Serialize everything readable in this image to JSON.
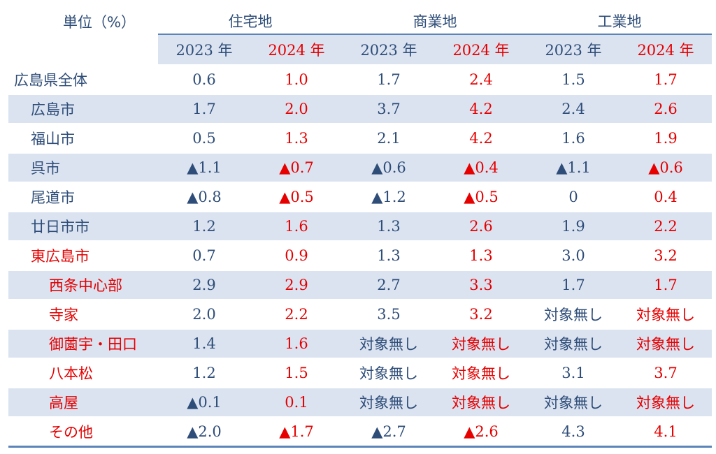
{
  "header": {
    "unit_label": "単位（%）",
    "groups": [
      "住宅地",
      "商業地",
      "工業地"
    ],
    "years": [
      "2023 年",
      "2024 年",
      "2023 年",
      "2024 年",
      "2023 年",
      "2024 年"
    ]
  },
  "colors": {
    "text_blue": "#2e4d78",
    "red": "#e60000",
    "shade": "#dbe3f1",
    "rule": "#5b84b8"
  },
  "rows": [
    {
      "name": "広島県全体",
      "values": [
        "0.6",
        "1.0",
        "1.7",
        "2.4",
        "1.5",
        "1.7"
      ]
    },
    {
      "name": "広島市",
      "values": [
        "1.7",
        "2.0",
        "3.7",
        "4.2",
        "2.4",
        "2.6"
      ]
    },
    {
      "name": "福山市",
      "values": [
        "0.5",
        "1.3",
        "2.1",
        "4.2",
        "1.6",
        "1.9"
      ]
    },
    {
      "name": "呉市",
      "values": [
        "▲1.1",
        "▲0.7",
        "▲0.6",
        "▲0.4",
        "▲1.1",
        "▲0.6"
      ]
    },
    {
      "name": "尾道市",
      "values": [
        "▲0.8",
        "▲0.5",
        "▲1.2",
        "▲0.5",
        "0",
        "0.4"
      ]
    },
    {
      "name": "廿日市市",
      "values": [
        "1.2",
        "1.6",
        "1.3",
        "2.6",
        "1.9",
        "2.2"
      ]
    },
    {
      "name": "東広島市",
      "values": [
        "0.7",
        "0.9",
        "1.3",
        "1.3",
        "3.0",
        "3.2"
      ]
    },
    {
      "name": "西条中心部",
      "values": [
        "2.9",
        "2.9",
        "2.7",
        "3.3",
        "1.7",
        "1.7"
      ]
    },
    {
      "name": "寺家",
      "values": [
        "2.0",
        "2.2",
        "3.5",
        "3.2",
        "対象無し",
        "対象無し"
      ]
    },
    {
      "name": "御薗宇・田口",
      "values": [
        "1.4",
        "1.6",
        "対象無し",
        "対象無し",
        "対象無し",
        "対象無し"
      ]
    },
    {
      "name": "八本松",
      "values": [
        "1.2",
        "1.5",
        "対象無し",
        "対象無し",
        "3.1",
        "3.7"
      ]
    },
    {
      "name": "高屋",
      "values": [
        "▲0.1",
        "0.1",
        "対象無し",
        "対象無し",
        "対象無し",
        "対象無し"
      ]
    },
    {
      "name": "その他",
      "values": [
        "▲2.0",
        "▲1.7",
        "▲2.7",
        "▲2.6",
        "4.3",
        "4.1"
      ]
    }
  ]
}
